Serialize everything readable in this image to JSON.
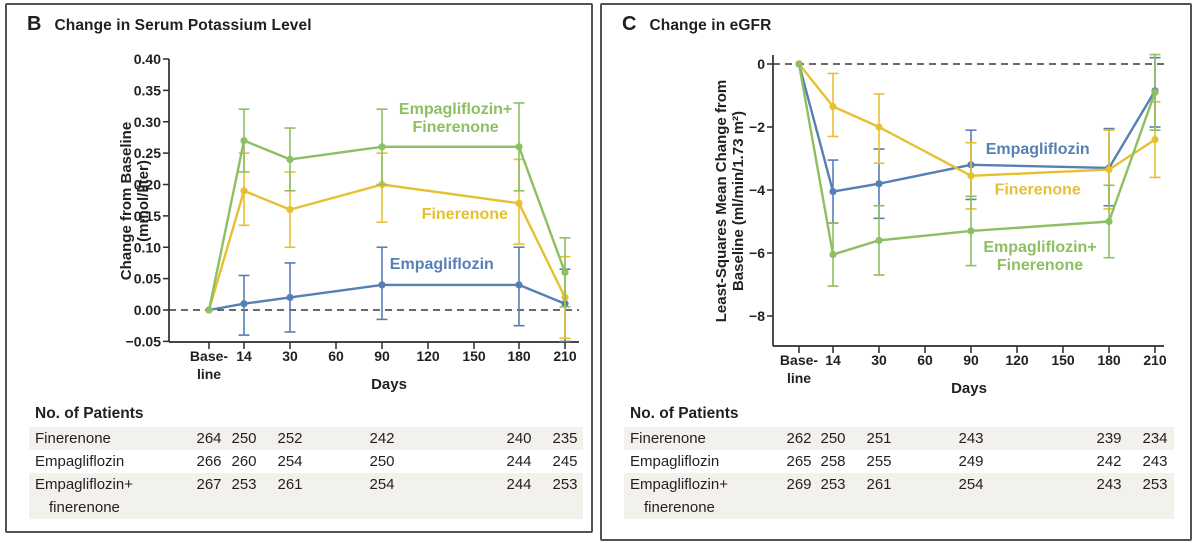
{
  "colors": {
    "empagliflozin": "#567fb4",
    "finerenone": "#e7c032",
    "empagliflozin_finerenone": "#8dbf63",
    "axis": "#2e2b28",
    "text": "#231f20",
    "stripe": "#f3f1ec",
    "panel_border": "#545257",
    "zero_line": "#3b3936"
  },
  "chart_data": [
    {
      "type": "line",
      "panel": "B",
      "title": "Change in Serum Potassium Level",
      "xlabel": "Days",
      "ylabel": "Change from Baseline (mmol/liter)",
      "ylabel_lines": [
        "Change from Baseline",
        "(mmol/liter)"
      ],
      "x_categories": [
        "Baseline",
        "14",
        "30",
        "60",
        "90",
        "120",
        "150",
        "180",
        "210"
      ],
      "x_tick_lines": [
        [
          "Base-",
          "line"
        ],
        [
          "14"
        ],
        [
          "30"
        ],
        [
          "60"
        ],
        [
          "90"
        ],
        [
          "120"
        ],
        [
          "150"
        ],
        [
          "180"
        ],
        [
          "210"
        ]
      ],
      "measured_days": [
        "Baseline",
        "14",
        "30",
        "90",
        "180",
        "210"
      ],
      "measured_tick_index": [
        0,
        1,
        2,
        4,
        7,
        8
      ],
      "ylim": [
        -0.05,
        0.4
      ],
      "yticks": [
        0.4,
        0.35,
        0.3,
        0.25,
        0.2,
        0.15,
        0.1,
        0.05,
        0.0,
        -0.05
      ],
      "ytick_labels": [
        "0.40",
        "0.35",
        "0.30",
        "0.25",
        "0.20",
        "0.15",
        "0.10",
        "0.05",
        "0.00",
        "−0.05"
      ],
      "zero_reference_line": 0,
      "grid": false,
      "series": [
        {
          "name": "Empagliflozin",
          "color": "#567fb4",
          "values": [
            0,
            0.01,
            0.02,
            0.04,
            0.04,
            0.01
          ],
          "ci_low": [
            0,
            -0.04,
            -0.035,
            -0.015,
            -0.025,
            -0.05
          ],
          "ci_high": [
            0,
            0.055,
            0.075,
            0.1,
            0.1,
            0.065
          ],
          "label_lines": [
            "Empagliflozin"
          ],
          "label_anchor": {
            "tick": 5.3,
            "value": 0.065
          }
        },
        {
          "name": "Finerenone",
          "color": "#e7c032",
          "values": [
            0,
            0.19,
            0.16,
            0.2,
            0.17,
            0.02
          ],
          "ci_low": [
            0,
            0.135,
            0.1,
            0.14,
            0.105,
            -0.045
          ],
          "ci_high": [
            0,
            0.25,
            0.22,
            0.25,
            0.24,
            0.085
          ],
          "label_lines": [
            "Finerenone"
          ],
          "label_anchor": {
            "tick": 5.8,
            "value": 0.145
          }
        },
        {
          "name": "Empagliflozin+Finerenone",
          "color": "#8dbf63",
          "values": [
            0,
            0.27,
            0.24,
            0.26,
            0.26,
            0.06
          ],
          "ci_low": [
            0,
            0.22,
            0.19,
            0.2,
            0.19,
            0.005
          ],
          "ci_high": [
            0,
            0.32,
            0.29,
            0.32,
            0.33,
            0.115
          ],
          "label_lines": [
            "Empagliflozin+",
            "Finerenone"
          ],
          "label_anchor": {
            "tick": 5.6,
            "value": 0.312
          }
        }
      ]
    },
    {
      "type": "line",
      "panel": "C",
      "title": "Change in eGFR",
      "xlabel": "Days",
      "ylabel": "Least-Squares Mean Change from Baseline (ml/min/1.73 m²)",
      "ylabel_lines": [
        "Least-Squares Mean Change from",
        "Baseline (ml/min/1.73 m²)"
      ],
      "x_categories": [
        "Baseline",
        "14",
        "30",
        "60",
        "90",
        "120",
        "150",
        "180",
        "210"
      ],
      "x_tick_lines": [
        [
          "Base-",
          "line"
        ],
        [
          "14"
        ],
        [
          "30"
        ],
        [
          "60"
        ],
        [
          "90"
        ],
        [
          "120"
        ],
        [
          "150"
        ],
        [
          "180"
        ],
        [
          "210"
        ]
      ],
      "measured_days": [
        "Baseline",
        "14",
        "30",
        "90",
        "180",
        "210"
      ],
      "measured_tick_index": [
        0,
        1,
        2,
        4,
        7,
        8
      ],
      "ylim": [
        -8.95,
        0.3
      ],
      "yticks": [
        0,
        -2,
        -4,
        -6,
        -8
      ],
      "ytick_labels": [
        "0",
        "−2",
        "−4",
        "−6",
        "−8"
      ],
      "zero_reference_line": 0,
      "grid": false,
      "series": [
        {
          "name": "Empagliflozin",
          "color": "#567fb4",
          "values": [
            0,
            -4.05,
            -3.8,
            -3.2,
            -3.3,
            -0.85
          ],
          "ci_low": [
            0,
            -5.05,
            -4.9,
            -4.3,
            -4.5,
            -2.0
          ],
          "ci_high": [
            0,
            -3.05,
            -2.7,
            -2.1,
            -2.05,
            0.2
          ],
          "label_lines": [
            "Empagliflozin"
          ],
          "label_anchor": {
            "tick": 5.45,
            "value": -2.86
          }
        },
        {
          "name": "Finerenone",
          "color": "#e7c032",
          "values": [
            0,
            -1.35,
            -2.0,
            -3.55,
            -3.35,
            -2.4
          ],
          "ci_low": [
            0,
            -2.3,
            -3.15,
            -4.6,
            -4.6,
            -3.6
          ],
          "ci_high": [
            0,
            -0.3,
            -0.95,
            -2.5,
            -2.1,
            -1.2
          ],
          "label_lines": [
            "Finerenone"
          ],
          "label_anchor": {
            "tick": 5.45,
            "value": -4.15
          }
        },
        {
          "name": "Empagliflozin+Finerenone",
          "color": "#8dbf63",
          "values": [
            0,
            -6.05,
            -5.6,
            -5.3,
            -5.0,
            -0.9
          ],
          "ci_low": [
            0,
            -7.05,
            -6.7,
            -6.4,
            -6.15,
            -2.1
          ],
          "ci_high": [
            0,
            -5.05,
            -4.5,
            -4.2,
            -3.85,
            0.3
          ],
          "label_lines": [
            "Empagliflozin+",
            "Finerenone"
          ],
          "label_anchor": {
            "tick": 5.5,
            "value": -5.97
          }
        }
      ]
    }
  ],
  "tables": [
    {
      "heading": "No. of Patients",
      "columns": [
        "Baseline",
        "14",
        "30",
        "90",
        "180",
        "210"
      ],
      "rows": [
        {
          "label_lines": [
            "Finerenone"
          ],
          "values": [
            "264",
            "250",
            "252",
            "242",
            "240",
            "235"
          ],
          "striped": true
        },
        {
          "label_lines": [
            "Empagliflozin"
          ],
          "values": [
            "266",
            "260",
            "254",
            "250",
            "244",
            "245"
          ],
          "striped": false
        },
        {
          "label_lines": [
            "Empagliflozin+",
            "finerenone"
          ],
          "values": [
            "267",
            "253",
            "261",
            "254",
            "244",
            "253"
          ],
          "striped": true
        }
      ]
    },
    {
      "heading": "No. of Patients",
      "columns": [
        "Baseline",
        "14",
        "30",
        "90",
        "180",
        "210"
      ],
      "rows": [
        {
          "label_lines": [
            "Finerenone"
          ],
          "values": [
            "262",
            "250",
            "251",
            "243",
            "239",
            "234"
          ],
          "striped": true
        },
        {
          "label_lines": [
            "Empagliflozin"
          ],
          "values": [
            "265",
            "258",
            "255",
            "249",
            "242",
            "243"
          ],
          "striped": false
        },
        {
          "label_lines": [
            "Empagliflozin+",
            "finerenone"
          ],
          "values": [
            "269",
            "253",
            "261",
            "254",
            "243",
            "253"
          ],
          "striped": true
        }
      ]
    }
  ]
}
